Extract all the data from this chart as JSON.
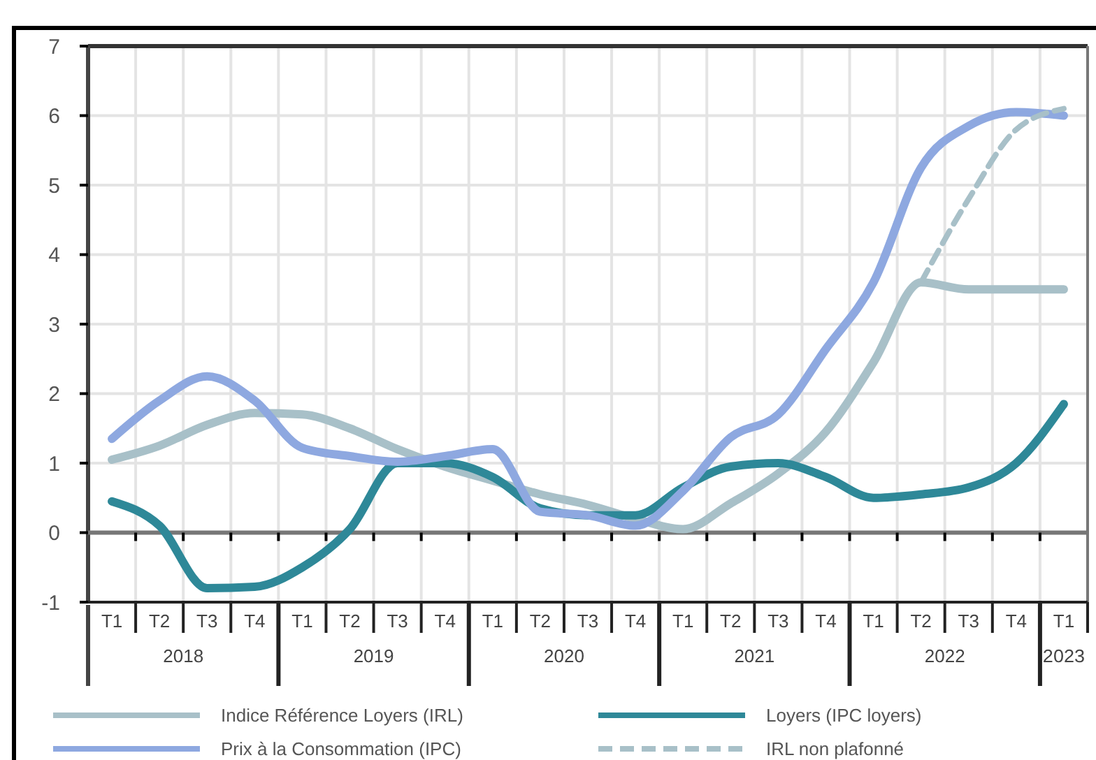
{
  "chart_data": {
    "type": "line",
    "categories": [
      "T1",
      "T2",
      "T3",
      "T4",
      "T1",
      "T2",
      "T3",
      "T4",
      "T1",
      "T2",
      "T3",
      "T4",
      "T1",
      "T2",
      "T3",
      "T4",
      "T1",
      "T2",
      "T3",
      "T4",
      "T1"
    ],
    "annotations": [
      "2018",
      "2019",
      "2020",
      "2021",
      "2022",
      "2023"
    ],
    "ylim": [
      -1,
      7
    ],
    "yticks": [
      -1,
      0,
      1,
      2,
      3,
      4,
      5,
      6,
      7
    ],
    "grid": true,
    "legend": "bottom",
    "series": [
      {
        "name": "Indice Référence Loyers (IRL)",
        "color": "#a8c0c8",
        "values": [
          1.05,
          1.25,
          1.55,
          1.72,
          1.7,
          1.5,
          1.2,
          0.95,
          0.75,
          0.55,
          0.4,
          0.2,
          0.05,
          0.42,
          0.85,
          1.45,
          2.45,
          3.6,
          3.5,
          3.5,
          3.5
        ]
      },
      {
        "name": "Loyers (IPC loyers)",
        "color": "#2e8898",
        "values": [
          0.45,
          0.1,
          -0.8,
          -0.78,
          -0.5,
          0.05,
          1.0,
          1.0,
          0.8,
          0.35,
          0.25,
          0.25,
          0.65,
          0.95,
          1.0,
          0.8,
          0.5,
          0.55,
          0.65,
          1.0,
          1.85
        ]
      },
      {
        "name": "Prix à la Consommation (IPC)",
        "color": "#8ea8e0",
        "values": [
          1.35,
          1.9,
          2.25,
          1.9,
          1.22,
          1.1,
          1.02,
          1.1,
          1.2,
          0.3,
          0.25,
          0.1,
          0.6,
          1.37,
          1.7,
          2.64,
          3.6,
          5.25,
          5.85,
          6.05,
          6.0
        ]
      },
      {
        "name": "IRL non plafonné",
        "color": "#a8c0c8",
        "line_style": "dashed",
        "values": [
          null,
          null,
          null,
          null,
          null,
          null,
          null,
          null,
          null,
          null,
          null,
          null,
          null,
          null,
          null,
          null,
          null,
          3.6,
          4.8,
          5.8,
          6.1
        ]
      }
    ]
  }
}
